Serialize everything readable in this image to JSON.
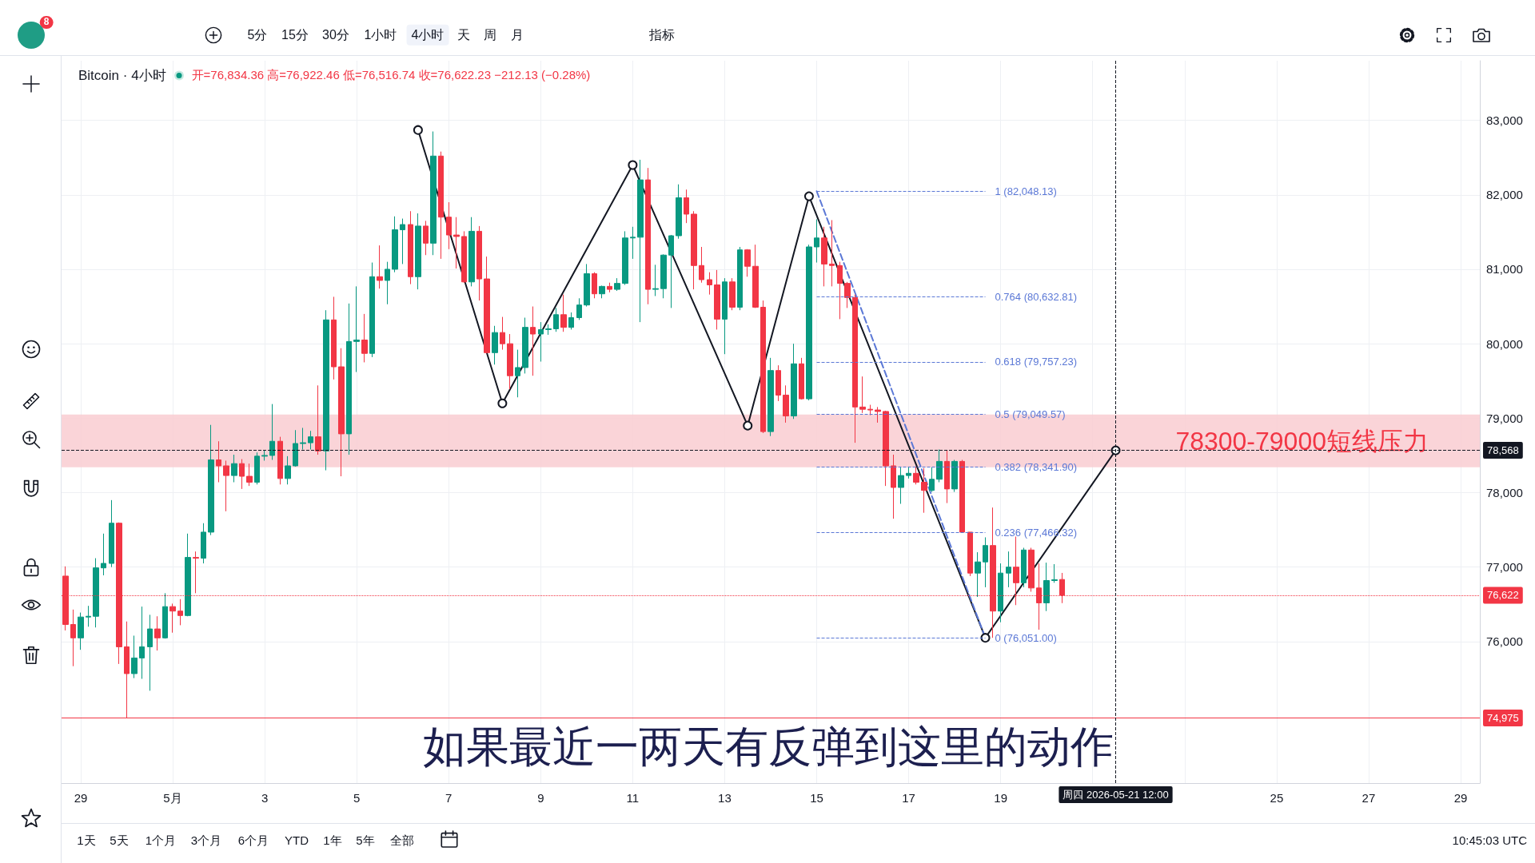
{
  "chart_data": {
    "type": "candlestick",
    "title": "Bitcoin · 4小时",
    "subtitle": "开=76,834.36 高=76,922.46 低=76,516.74 收=76,622.23 −212.13 (−0.28%)",
    "x": [
      "2026-04-28T16:00",
      "2026-04-28T20:00",
      "2026-04-29T00:00",
      "2026-04-29T04:00",
      "2026-04-29T08:00",
      "2026-04-29T12:00",
      "2026-04-29T16:00",
      "2026-04-29T20:00",
      "2026-04-30T00:00",
      "2026-04-30T04:00",
      "2026-04-30T08:00",
      "2026-04-30T12:00",
      "2026-04-30T16:00",
      "2026-04-30T20:00",
      "2026-05-01T00:00",
      "2026-05-01T04:00",
      "2026-05-01T08:00",
      "2026-05-01T12:00",
      "2026-05-01T16:00",
      "2026-05-01T20:00",
      "2026-05-02T00:00",
      "2026-05-02T04:00",
      "2026-05-02T08:00",
      "2026-05-02T12:00",
      "2026-05-02T16:00",
      "2026-05-02T20:00",
      "2026-05-03T00:00",
      "2026-05-03T04:00",
      "2026-05-03T08:00",
      "2026-05-03T12:00",
      "2026-05-03T16:00",
      "2026-05-03T20:00",
      "2026-05-04T00:00",
      "2026-05-04T04:00",
      "2026-05-04T08:00",
      "2026-05-04T12:00",
      "2026-05-04T16:00",
      "2026-05-04T20:00",
      "2026-05-05T00:00",
      "2026-05-05T04:00",
      "2026-05-05T08:00",
      "2026-05-05T12:00",
      "2026-05-05T16:00",
      "2026-05-05T20:00",
      "2026-05-06T00:00",
      "2026-05-06T04:00",
      "2026-05-06T08:00",
      "2026-05-06T12:00",
      "2026-05-06T16:00",
      "2026-05-06T20:00",
      "2026-05-07T00:00",
      "2026-05-07T04:00",
      "2026-05-07T08:00",
      "2026-05-07T12:00",
      "2026-05-07T16:00",
      "2026-05-07T20:00",
      "2026-05-08T00:00",
      "2026-05-08T04:00",
      "2026-05-08T08:00",
      "2026-05-08T12:00",
      "2026-05-08T16:00",
      "2026-05-08T20:00",
      "2026-05-09T00:00",
      "2026-05-09T04:00",
      "2026-05-09T08:00",
      "2026-05-09T12:00",
      "2026-05-09T16:00",
      "2026-05-09T20:00",
      "2026-05-10T00:00",
      "2026-05-10T04:00",
      "2026-05-10T08:00",
      "2026-05-10T12:00",
      "2026-05-10T16:00",
      "2026-05-10T20:00",
      "2026-05-11T00:00",
      "2026-05-11T04:00",
      "2026-05-11T08:00",
      "2026-05-11T12:00",
      "2026-05-11T16:00",
      "2026-05-11T20:00",
      "2026-05-12T00:00",
      "2026-05-12T04:00",
      "2026-05-12T08:00",
      "2026-05-12T12:00",
      "2026-05-12T16:00",
      "2026-05-12T20:00",
      "2026-05-13T00:00",
      "2026-05-13T04:00",
      "2026-05-13T08:00",
      "2026-05-13T12:00",
      "2026-05-13T16:00",
      "2026-05-13T20:00",
      "2026-05-14T00:00",
      "2026-05-14T04:00",
      "2026-05-14T08:00",
      "2026-05-14T12:00",
      "2026-05-14T16:00",
      "2026-05-14T20:00",
      "2026-05-15T00:00",
      "2026-05-15T04:00",
      "2026-05-15T08:00",
      "2026-05-15T12:00",
      "2026-05-15T16:00",
      "2026-05-15T20:00",
      "2026-05-16T00:00",
      "2026-05-16T04:00",
      "2026-05-16T08:00",
      "2026-05-16T12:00",
      "2026-05-16T16:00",
      "2026-05-16T20:00",
      "2026-05-17T00:00",
      "2026-05-17T04:00",
      "2026-05-17T08:00",
      "2026-05-17T12:00",
      "2026-05-17T16:00",
      "2026-05-17T20:00",
      "2026-05-18T00:00",
      "2026-05-18T04:00",
      "2026-05-18T08:00",
      "2026-05-18T12:00",
      "2026-05-18T16:00",
      "2026-05-18T20:00",
      "2026-05-19T00:00",
      "2026-05-19T04:00",
      "2026-05-19T08:00",
      "2026-05-19T12:00",
      "2026-05-19T16:00",
      "2026-05-19T20:00",
      "2026-05-20T00:00",
      "2026-05-20T04:00",
      "2026-05-20T08:00"
    ],
    "ohlc": [
      [
        76880,
        77010,
        76150,
        76230
      ],
      [
        76230,
        76430,
        75670,
        76050
      ],
      [
        76050,
        76390,
        75890,
        76330
      ],
      [
        76330,
        76480,
        76200,
        76340
      ],
      [
        76340,
        77120,
        76190,
        76990
      ],
      [
        76990,
        77450,
        76890,
        77050
      ],
      [
        77050,
        77900,
        77000,
        77590
      ],
      [
        77590,
        77600,
        75700,
        75930
      ],
      [
        75930,
        76270,
        74975,
        75570
      ],
      [
        75570,
        76080,
        75510,
        75780
      ],
      [
        75780,
        76470,
        75500,
        75930
      ],
      [
        75930,
        76360,
        75340,
        76170
      ],
      [
        76170,
        76340,
        75880,
        76050
      ],
      [
        76050,
        76650,
        76040,
        76470
      ],
      [
        76470,
        76510,
        76120,
        76410
      ],
      [
        76410,
        76570,
        76220,
        76350
      ],
      [
        76350,
        77450,
        76340,
        77130
      ],
      [
        77130,
        77210,
        76650,
        77120
      ],
      [
        77120,
        77590,
        77050,
        77470
      ],
      [
        77470,
        78910,
        77430,
        78440
      ],
      [
        78440,
        78690,
        78140,
        78360
      ],
      [
        78360,
        78430,
        77750,
        78230
      ],
      [
        78230,
        78510,
        78140,
        78390
      ],
      [
        78390,
        78450,
        78050,
        78220
      ],
      [
        78220,
        78390,
        78090,
        78140
      ],
      [
        78140,
        78540,
        78110,
        78490
      ],
      [
        78490,
        78570,
        78430,
        78500
      ],
      [
        78500,
        79190,
        78440,
        78690
      ],
      [
        78690,
        78750,
        78110,
        78190
      ],
      [
        78190,
        78490,
        78110,
        78360
      ],
      [
        78360,
        78840,
        78350,
        78660
      ],
      [
        78660,
        78870,
        78580,
        78670
      ],
      [
        78670,
        78830,
        78580,
        78750
      ],
      [
        78750,
        79440,
        78510,
        78560
      ],
      [
        78560,
        80450,
        78300,
        80320
      ],
      [
        80320,
        80630,
        79520,
        79690
      ],
      [
        79690,
        79940,
        78220,
        78790
      ],
      [
        78790,
        80540,
        78510,
        80030
      ],
      [
        80030,
        80770,
        79620,
        80050
      ],
      [
        80050,
        80400,
        79750,
        79870
      ],
      [
        79870,
        81090,
        79820,
        80900
      ],
      [
        80900,
        81320,
        80740,
        80850
      ],
      [
        80850,
        81100,
        80530,
        81000
      ],
      [
        81000,
        81710,
        80960,
        81530
      ],
      [
        81530,
        81680,
        81070,
        81600
      ],
      [
        81600,
        81780,
        80800,
        80900
      ],
      [
        80900,
        81750,
        80730,
        81580
      ],
      [
        81580,
        81650,
        81190,
        81350
      ],
      [
        81350,
        82850,
        81190,
        82520
      ],
      [
        82520,
        82580,
        81140,
        81700
      ],
      [
        81700,
        81900,
        81270,
        81460
      ],
      [
        81460,
        81700,
        81010,
        81440
      ],
      [
        81440,
        81510,
        80820,
        80830
      ],
      [
        80830,
        81700,
        80770,
        81510
      ],
      [
        81510,
        81580,
        80580,
        80870
      ],
      [
        80870,
        81170,
        79870,
        79880
      ],
      [
        79880,
        80240,
        79720,
        80150
      ],
      [
        80150,
        80360,
        79920,
        80000
      ],
      [
        80000,
        80130,
        79390,
        79570
      ],
      [
        79570,
        79920,
        79280,
        79680
      ],
      [
        79680,
        80350,
        79600,
        80220
      ],
      [
        80220,
        80500,
        79570,
        80130
      ],
      [
        80130,
        80290,
        79760,
        80190
      ],
      [
        80190,
        80260,
        80120,
        80200
      ],
      [
        80200,
        80480,
        80160,
        80390
      ],
      [
        80390,
        80660,
        80160,
        80220
      ],
      [
        80220,
        80420,
        80190,
        80350
      ],
      [
        80350,
        80610,
        80320,
        80520
      ],
      [
        80520,
        81070,
        80500,
        80940
      ],
      [
        80940,
        80960,
        80610,
        80670
      ],
      [
        80670,
        80780,
        80610,
        80770
      ],
      [
        80770,
        80820,
        80690,
        80730
      ],
      [
        80730,
        80880,
        80710,
        80810
      ],
      [
        80810,
        81510,
        80790,
        81420
      ],
      [
        81420,
        81570,
        81140,
        81430
      ],
      [
        81430,
        82470,
        80290,
        82200
      ],
      [
        82200,
        82360,
        80530,
        80730
      ],
      [
        80730,
        81060,
        80640,
        80740
      ],
      [
        80740,
        81200,
        80610,
        81190
      ],
      [
        81190,
        81460,
        80480,
        81450
      ],
      [
        81450,
        82140,
        81410,
        81960
      ],
      [
        81960,
        82070,
        81620,
        81740
      ],
      [
        81740,
        81780,
        80730,
        81050
      ],
      [
        81050,
        81300,
        80820,
        80860
      ],
      [
        80860,
        80960,
        80660,
        80790
      ],
      [
        80790,
        80990,
        80190,
        80330
      ],
      [
        80330,
        80880,
        79860,
        80830
      ],
      [
        80830,
        80880,
        80450,
        80490
      ],
      [
        80490,
        81300,
        80450,
        81260
      ],
      [
        81260,
        81270,
        80900,
        81040
      ],
      [
        81040,
        81330,
        80480,
        80490
      ],
      [
        80490,
        80580,
        78800,
        78820
      ],
      [
        78820,
        79810,
        78760,
        79640
      ],
      [
        79640,
        79710,
        79230,
        79310
      ],
      [
        79310,
        79440,
        78940,
        79030
      ],
      [
        79030,
        80000,
        78990,
        79730
      ],
      [
        79730,
        79810,
        79250,
        79260
      ],
      [
        79260,
        81330,
        79240,
        81300
      ],
      [
        81300,
        81670,
        81090,
        81420
      ],
      [
        81420,
        81570,
        80770,
        81070
      ],
      [
        81070,
        81660,
        80770,
        81050
      ],
      [
        81050,
        81100,
        80330,
        80810
      ],
      [
        80810,
        80830,
        80480,
        80620
      ],
      [
        80620,
        80660,
        78670,
        79150
      ],
      [
        79150,
        79560,
        79070,
        79120
      ],
      [
        79120,
        79180,
        79040,
        79110
      ],
      [
        79110,
        79150,
        78940,
        79090
      ],
      [
        79090,
        79100,
        78090,
        78360
      ],
      [
        78360,
        78510,
        77650,
        78070
      ],
      [
        78070,
        78350,
        77850,
        78230
      ],
      [
        78230,
        78350,
        78190,
        78260
      ],
      [
        78260,
        78350,
        78110,
        78140
      ],
      [
        78140,
        78330,
        77730,
        78030
      ],
      [
        78030,
        78340,
        78010,
        78180
      ],
      [
        78180,
        78580,
        78140,
        78420
      ],
      [
        78420,
        78570,
        77860,
        78050
      ],
      [
        78050,
        78440,
        78010,
        78420
      ],
      [
        78420,
        78440,
        77460,
        77470
      ],
      [
        77470,
        77470,
        76880,
        76920
      ],
      [
        76920,
        77200,
        76600,
        77070
      ],
      [
        77070,
        77400,
        76730,
        77290
      ],
      [
        77290,
        77800,
        76051,
        76410
      ],
      [
        76410,
        77050,
        76260,
        76920
      ],
      [
        76920,
        77210,
        76730,
        77000
      ],
      [
        77000,
        77410,
        76490,
        76790
      ],
      [
        76790,
        77260,
        76730,
        77230
      ],
      [
        77230,
        77260,
        76670,
        76720
      ],
      [
        76720,
        77050,
        76160,
        76520
      ],
      [
        76520,
        77060,
        76410,
        76820
      ],
      [
        76820,
        77040,
        76790,
        76830
      ],
      [
        76834.36,
        76922.46,
        76516.74,
        76622.23
      ]
    ],
    "colors": [
      "#f23645",
      "#f23645",
      "#089981",
      "#089981",
      "#089981",
      "#089981",
      "#089981",
      "#f23645",
      "#f23645",
      "#089981",
      "#089981",
      "#089981",
      "#f23645",
      "#089981",
      "#f23645",
      "#f23645",
      "#089981",
      "#f23645",
      "#089981",
      "#089981",
      "#f23645",
      "#f23645",
      "#089981",
      "#f23645",
      "#f23645",
      "#089981",
      "#089981",
      "#089981",
      "#f23645",
      "#089981",
      "#089981",
      "#089981",
      "#089981",
      "#f23645",
      "#089981",
      "#f23645",
      "#f23645",
      "#089981",
      "#089981",
      "#f23645",
      "#089981",
      "#f23645",
      "#089981",
      "#089981",
      "#089981",
      "#f23645",
      "#089981",
      "#f23645",
      "#089981",
      "#f23645",
      "#f23645",
      "#f23645",
      "#f23645",
      "#089981",
      "#f23645",
      "#f23645",
      "#089981",
      "#f23645",
      "#f23645",
      "#089981",
      "#089981",
      "#f23645",
      "#089981",
      "#089981",
      "#089981",
      "#f23645",
      "#089981",
      "#089981",
      "#089981",
      "#f23645",
      "#089981",
      "#f23645",
      "#089981",
      "#089981",
      "#089981",
      "#089981",
      "#f23645",
      "#089981",
      "#089981",
      "#089981",
      "#089981",
      "#f23645",
      "#f23645",
      "#f23645",
      "#f23645",
      "#f23645",
      "#089981",
      "#f23645",
      "#089981",
      "#f23645",
      "#f23645",
      "#f23645",
      "#089981",
      "#f23645",
      "#f23645",
      "#089981",
      "#f23645",
      "#089981",
      "#089981",
      "#f23645",
      "#f23645",
      "#f23645",
      "#f23645",
      "#f23645",
      "#f23645",
      "#f23645",
      "#f23645",
      "#f23645",
      "#f23645",
      "#089981",
      "#089981",
      "#f23645",
      "#f23645",
      "#089981",
      "#089981",
      "#f23645",
      "#089981",
      "#f23645",
      "#f23645",
      "#089981",
      "#089981",
      "#f23645",
      "#089981",
      "#089981",
      "#f23645",
      "#089981",
      "#f23645",
      "#f23645",
      "#089981",
      "#089981",
      "#f23645"
    ],
    "series": [
      {
        "type": "line",
        "x": [
          "2026-05-06T08:00",
          "2026-05-08T04:00",
          "2026-05-11T00:00",
          "2026-05-13T12:00",
          "2026-05-14T20:00",
          "2026-05-18T16:00",
          "2026-05-21T12:00"
        ],
        "values": [
          82870,
          79200,
          82400,
          78900,
          81980,
          76051,
          78568
        ],
        "color": "#131722",
        "marker": "circle"
      },
      {
        "type": "line",
        "x": [
          "2026-05-15T00:00",
          "2026-05-18T16:00"
        ],
        "values": [
          82048.13,
          76051
        ],
        "color": "#5b78d6",
        "line_style": "dashed"
      }
    ],
    "xlim": [
      "2026-04-28T14:00",
      "2026-05-29T10:00"
    ],
    "xticks": [
      {
        "value": "2026-04-29",
        "label": "29"
      },
      {
        "value": "2026-05-01",
        "label": "5月"
      },
      {
        "value": "2026-05-03",
        "label": "3"
      },
      {
        "value": "2026-05-05",
        "label": "5"
      },
      {
        "value": "2026-05-07",
        "label": "7"
      },
      {
        "value": "2026-05-09",
        "label": "9"
      },
      {
        "value": "2026-05-11",
        "label": "11"
      },
      {
        "value": "2026-05-13",
        "label": "13"
      },
      {
        "value": "2026-05-15",
        "label": "15"
      },
      {
        "value": "2026-05-17",
        "label": "17"
      },
      {
        "value": "2026-05-19",
        "label": "19"
      },
      {
        "value": "2026-05-21",
        "label": null
      },
      {
        "value": "2026-05-23",
        "label": null
      },
      {
        "value": "2026-05-25",
        "label": "25"
      },
      {
        "value": "2026-05-27",
        "label": "27"
      },
      {
        "value": "2026-05-29",
        "label": "29"
      }
    ],
    "ylim": [
      74100,
      83800
    ],
    "yticks": [
      {
        "value": 76000,
        "label": "76,000"
      },
      {
        "value": 77000,
        "label": "77,000"
      },
      {
        "value": 78000,
        "label": "78,000"
      },
      {
        "value": 79000,
        "label": "79,000"
      },
      {
        "value": 80000,
        "label": "80,000"
      },
      {
        "value": 81000,
        "label": "81,000"
      },
      {
        "value": 82000,
        "label": "82,000"
      },
      {
        "value": 83000,
        "label": "83,000"
      }
    ],
    "grid": true,
    "ref_lines": [
      {
        "axis": "y",
        "value": 82048.13,
        "label": "1 (82,048.13)",
        "color": "#5b78d6",
        "line_style": "dashed"
      },
      {
        "axis": "y",
        "value": 80632.81,
        "label": "0.764 (80,632.81)",
        "color": "#5b78d6",
        "line_style": "dashed"
      },
      {
        "axis": "y",
        "value": 79757.23,
        "label": "0.618 (79,757.23)",
        "color": "#5b78d6",
        "line_style": "dashed"
      },
      {
        "axis": "y",
        "value": 79049.57,
        "label": "0.5 (79,049.57)",
        "color": "#5b78d6",
        "line_style": "dashed"
      },
      {
        "axis": "y",
        "value": 78341.9,
        "label": "0.382 (78,341.90)",
        "color": "#5b78d6",
        "line_style": "dashed"
      },
      {
        "axis": "y",
        "value": 77466.32,
        "label": "0.236 (77,466.32)",
        "color": "#5b78d6",
        "line_style": "dashed"
      },
      {
        "axis": "y",
        "value": 76051,
        "label": "0 (76,051.00)",
        "color": "#5b78d6",
        "line_style": "dashed"
      },
      {
        "axis": "y",
        "value": 74975,
        "label": "74,975",
        "color": "#f23645",
        "line_style": "solid"
      },
      {
        "axis": "y",
        "value": 76622.23,
        "label": "76,622",
        "color": "#f23645",
        "line_style": "dotted"
      },
      {
        "axis": "y",
        "value": 78568,
        "label": "78,568",
        "color": "#131722",
        "line_style": "dashed"
      },
      {
        "axis": "x",
        "value": "2026-05-21T12:00",
        "label": "周四 2026-05-21 12:00",
        "color": "#131722",
        "line_style": "dashed"
      }
    ],
    "bands": [
      {
        "axis": "y",
        "from": 78341.9,
        "to": 79049.57,
        "label": "78300-79000短线压力",
        "color": "#f9cdd1"
      }
    ],
    "annotations": [
      "如果最近一两天有反弹到这里的动作",
      "8",
      "5分",
      "15分",
      "30分",
      "1小时",
      "4小时",
      "天",
      "周",
      "月",
      "指标",
      "1天",
      "5天",
      "1个月",
      "3个月",
      "6个月",
      "YTD",
      "1年",
      "5年",
      "全部",
      "10:45:03 UTC"
    ]
  }
}
